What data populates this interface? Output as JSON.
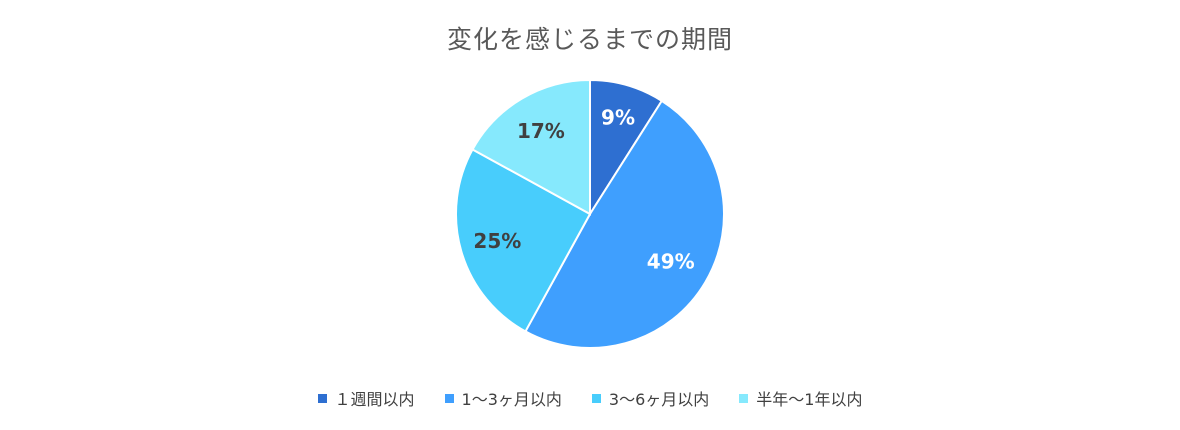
{
  "chart_data": {
    "type": "pie",
    "title": "変化を感じるまでの期間",
    "slices": [
      {
        "name": "１週間以内",
        "value": 9,
        "label": "9%",
        "color": "#2e6fd1",
        "label_color": "#ffffff"
      },
      {
        "name": "1〜3ヶ月以内",
        "value": 49,
        "label": "49%",
        "color": "#3f9ffe",
        "label_color": "#ffffff"
      },
      {
        "name": "3〜6ヶ月以内",
        "value": 25,
        "label": "25%",
        "color": "#48cdfc",
        "label_color": "#404040"
      },
      {
        "name": "半年〜1年以内",
        "value": 17,
        "label": "17%",
        "color": "#86e9fd",
        "label_color": "#404040"
      }
    ],
    "legend_position": "bottom",
    "start_angle": "12 o'clock",
    "direction": "clockwise"
  }
}
